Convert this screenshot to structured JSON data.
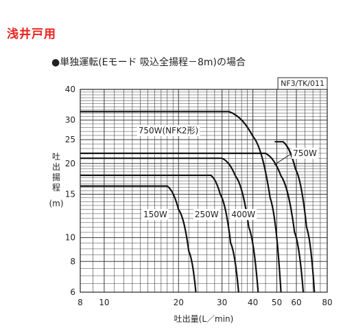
{
  "page": {
    "heading": "浅井戸用",
    "subtitle": "●単独運転(Eモード 吸込全揚程－8m)の場合"
  },
  "colors": {
    "heading": "#e8201a",
    "grid": "#3a3a3a",
    "curve": "#111111"
  },
  "chart_data": {
    "type": "line",
    "code": "NF3/TK/011",
    "xlabel": "吐出量(L／min)",
    "ylabel": "吐出揚程(m)",
    "xscale": "log",
    "yscale": "log",
    "xlim": [
      8,
      80
    ],
    "ylim": [
      6,
      40
    ],
    "xticks": [
      8,
      10,
      20,
      30,
      40,
      50,
      60,
      80
    ],
    "yticks": [
      6,
      8,
      10,
      15,
      20,
      25,
      30,
      40
    ],
    "series": [
      {
        "name": "150W",
        "x": [
          8,
          18,
          20,
          22,
          23.5
        ],
        "y": [
          16.2,
          16.2,
          13.0,
          8.8,
          6
        ]
      },
      {
        "name": "250W",
        "x": [
          8,
          27,
          29.5,
          32.5,
          35
        ],
        "y": [
          17.9,
          17.9,
          15.0,
          9.5,
          6
        ]
      },
      {
        "name": "400W",
        "x": [
          8,
          30,
          34,
          38.5,
          42
        ],
        "y": [
          21.0,
          21.0,
          17.8,
          11.0,
          6
        ]
      },
      {
        "name": "750W(NFK2形)",
        "x": [
          8,
          32,
          40,
          47,
          52
        ],
        "y": [
          32.5,
          32.5,
          25.8,
          14.5,
          6
        ]
      },
      {
        "name": "750W",
        "x": [
          8,
          45,
          52,
          59,
          64
        ],
        "y": [
          22.0,
          22.0,
          17.8,
          10.5,
          6
        ]
      },
      {
        "name": "750W",
        "x": [
          49,
          53,
          59.5,
          66,
          71
        ],
        "y": [
          24.5,
          24.5,
          19.0,
          11.0,
          6
        ]
      }
    ],
    "labels": [
      {
        "text": "750W(NFK2形)",
        "x": 18.2,
        "y": 27.2
      },
      {
        "text": "750W",
        "x": 65.0,
        "y": 22.0
      },
      {
        "text": "150W",
        "x": 16.1,
        "y": 12.4
      },
      {
        "text": "250W",
        "x": 26.0,
        "y": 12.4
      },
      {
        "text": "400W",
        "x": 36.6,
        "y": 12.4
      }
    ]
  }
}
